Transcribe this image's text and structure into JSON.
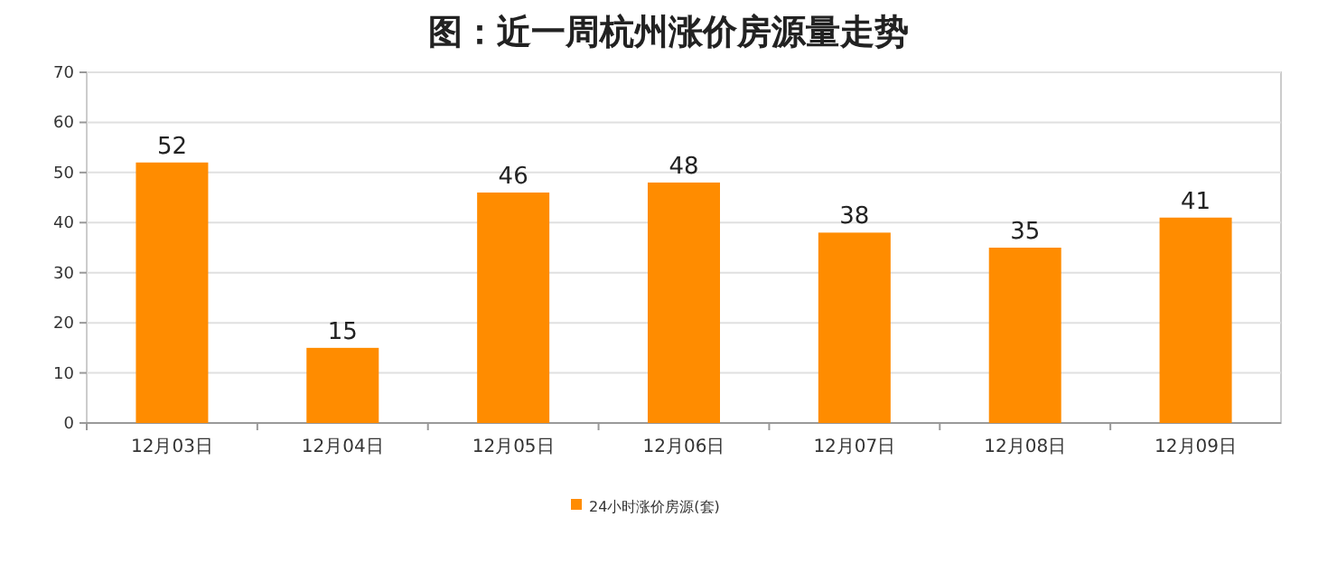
{
  "chart_data": {
    "type": "bar",
    "title": "图：近一周杭州涨价房源量走势",
    "categories": [
      "12月03日",
      "12月04日",
      "12月05日",
      "12月06日",
      "12月07日",
      "12月08日",
      "12月09日"
    ],
    "series": [
      {
        "name": "24小时涨价房源(套)",
        "color": "#ff8c00",
        "values": [
          52,
          15,
          46,
          48,
          38,
          35,
          41
        ]
      }
    ],
    "ylim": [
      0,
      70
    ],
    "yticks": [
      0,
      10,
      20,
      30,
      40,
      50,
      60,
      70
    ],
    "grid": "y",
    "legend": "bottom",
    "data_labels": true
  }
}
